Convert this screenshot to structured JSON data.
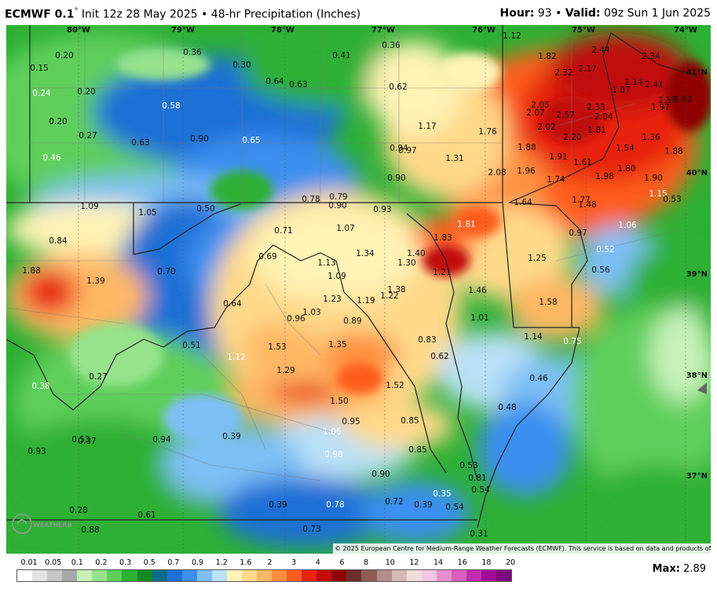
{
  "header": {
    "model": "ECMWF 0.1",
    "degree": "°",
    "info": "Init 12z 28 May 2025 • 48-hr Precipitation (Inches)",
    "hour_label": "Hour:",
    "hour_value": "93",
    "valid_label": "Valid:",
    "valid_value": "09z Sun 1 Jun 2025",
    "separator": "•"
  },
  "axes": {
    "lon": [
      "80°W",
      "79°W",
      "78°W",
      "77°W",
      "76°W",
      "75°W",
      "74°W"
    ],
    "lat": [
      "40°N",
      "39°N",
      "38°N",
      "37°N",
      "41°N"
    ]
  },
  "values": [
    "0.20",
    "0.15",
    "0.24",
    "0.20",
    "0.20",
    "0.27",
    "0.46",
    "0.36",
    "0.30",
    "0.41",
    "0.36",
    "0.64",
    "0.63",
    "0.62",
    "0.58",
    "0.63",
    "0.90",
    "0.65",
    "1.12",
    "1.82",
    "2.44",
    "2.34",
    "2.32",
    "2.17",
    "2.14",
    "2.41",
    "1.87",
    "2.59",
    "2.62",
    "2.05",
    "2.57",
    "2.33",
    "1.97",
    "2.07",
    "2.04",
    "2.02",
    "1.81",
    "1.17",
    "1.76",
    "2.20",
    "1.36",
    "0.94",
    "0.97",
    "1.31",
    "1.88",
    "1.54",
    "1.88",
    "1.91",
    "1.61",
    "1.80",
    "2.08",
    "1.96",
    "1.98",
    "1.90",
    "0.90",
    "1.74",
    "1.15",
    "1.09",
    "1.05",
    "0.50",
    "0.78",
    "0.79",
    "0.90",
    "0.93",
    "1.64",
    "1.77",
    "1.48",
    "0.53",
    "0.84",
    "0.71",
    "1.07",
    "1.83",
    "1.81",
    "0.97",
    "1.06",
    "0.69",
    "1.34",
    "1.40",
    "0.52",
    "1.88",
    "0.70",
    "1.13",
    "1.30",
    "1.25",
    "1.39",
    "1.09",
    "1.21",
    "0.56",
    "1.38",
    "1.46",
    "1.22",
    "1.23",
    "1.19",
    "1.58",
    "0.64",
    "1.03",
    "0.96",
    "0.89",
    "1.01",
    "0.51",
    "1.53",
    "1.35",
    "0.83",
    "1.14",
    "0.75",
    "1.12",
    "0.62",
    "0.27",
    "1.29",
    "0.46",
    "0.38",
    "1.52",
    "1.50",
    "0.48",
    "0.95",
    "0.85",
    "1.06",
    "0.53",
    "0.39",
    "0.37",
    "0.94",
    "0.85",
    "0.98",
    "0.53",
    "0.93",
    "0.90",
    "0.81",
    "0.54",
    "0.28",
    "0.39",
    "0.78",
    "0.72",
    "0.35",
    "0.61",
    "0.39",
    "0.54",
    "0.88",
    "0.73",
    "0.31"
  ],
  "copyright": "© 2025 European Centre for Medium-Range Weather Forecasts (ECMWF). This service is based on data and products of the ECMWF.",
  "legend": {
    "ticks": [
      "0.01",
      "0.05",
      "0.1",
      "0.2",
      "0.3",
      "0.5",
      "0.7",
      "0.9",
      "1.2",
      "1.6",
      "2",
      "3",
      "4",
      "6",
      "8",
      "10",
      "12",
      "14",
      "16",
      "18",
      "20"
    ],
    "colors": [
      "#ffffff",
      "#e3e3e3",
      "#c6c6c6",
      "#a8a8a8",
      "#c6f2b8",
      "#96e38c",
      "#5fcf5c",
      "#2db034",
      "#138a22",
      "#0d6b8c",
      "#1e6fd6",
      "#3b8ff0",
      "#7dbff5",
      "#b9e1f7",
      "#fff3b5",
      "#ffd98a",
      "#ffb763",
      "#ff9040",
      "#ff5d1f",
      "#e8230f",
      "#c20a0a",
      "#8f0606",
      "#6e2f2a",
      "#8f5b55",
      "#b38d88",
      "#d5b8b4",
      "#f0dcd9",
      "#f5c6e3",
      "#e88fd0",
      "#d95ec0",
      "#c12cae",
      "#a30a98",
      "#7e0a7e"
    ],
    "max_label": "Max:",
    "max_value": "2.89"
  },
  "logo_text": "WEATHERBELL"
}
